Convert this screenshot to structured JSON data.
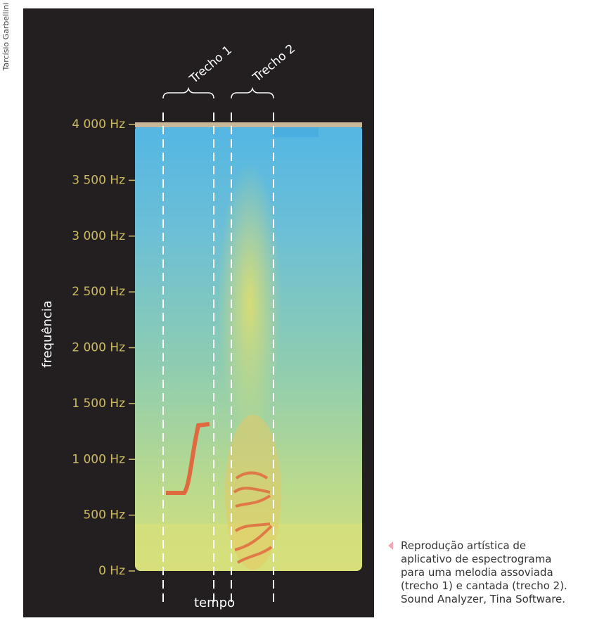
{
  "chart_data": {
    "type": "spectrogram",
    "ylabel": "frequência",
    "xlabel": "tempo",
    "ylim": [
      0,
      4000
    ],
    "yticks": [
      {
        "value": 0,
        "label": "0 Hz"
      },
      {
        "value": 500,
        "label": "500 Hz"
      },
      {
        "value": 1000,
        "label": "1 000 Hz"
      },
      {
        "value": 1500,
        "label": "1 500 Hz"
      },
      {
        "value": 2000,
        "label": "2 000 Hz"
      },
      {
        "value": 2500,
        "label": "2 500 Hz"
      },
      {
        "value": 3000,
        "label": "3 000 Hz"
      },
      {
        "value": 3500,
        "label": "3 500 Hz"
      },
      {
        "value": 4000,
        "label": "4 000 Hz"
      }
    ],
    "annotations": [
      "Trecho 1",
      "Trecho 2"
    ],
    "credit": "Tarcísio Garbellini",
    "caption": [
      "Reprodução artística de",
      "aplicativo de espectrograma",
      "para uma melodia assoviada",
      "(trecho 1) e cantada (trecho 2).",
      "Sound Analyzer, Tina Software."
    ]
  }
}
